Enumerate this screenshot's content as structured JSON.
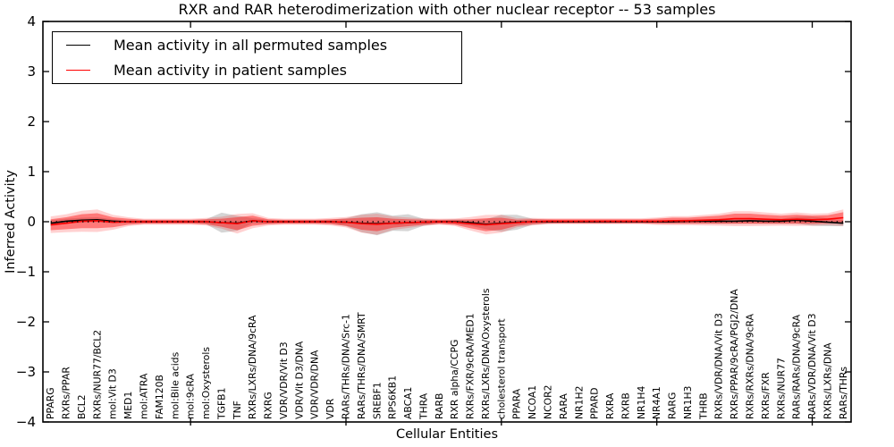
{
  "figure": {
    "title": "RXR and RAR heterodimerization with other nuclear receptor -- 53 samples",
    "xlabel": "Cellular Entities",
    "ylabel": "Inferred Activity"
  },
  "chart_data": {
    "type": "line",
    "title": "RXR and RAR heterodimerization with other nuclear receptor -- 53 samples",
    "xlabel": "Cellular Entities",
    "ylabel": "Inferred Activity",
    "ylim": [
      -4,
      4
    ],
    "yticks": [
      -4,
      -3,
      -2,
      -1,
      0,
      1,
      2,
      3,
      4
    ],
    "xticks": [
      10,
      20,
      30,
      40,
      50
    ],
    "grid": false,
    "legend_position": "upper left",
    "zero_line": {
      "y": 0,
      "style": "dotted",
      "color": "#000000"
    },
    "categories": [
      "PPARG",
      "RXRs/PPAR",
      "BCL2",
      "RXRs/NUR77/BCL2",
      "mol:Vit D3",
      "MED1",
      "mol:ATRA",
      "FAM120B",
      "mol:Bile acids",
      "mol:9cRA",
      "mol:Oxysterols",
      "TGFB1",
      "TNF",
      "RXRs/LXRs/DNA/9cRA",
      "RXRG",
      "VDR/VDR/Vit D3",
      "VDR/Vit D3/DNA",
      "VDR/VDR/DNA",
      "VDR",
      "RARs/THRs/DNA/Src-1",
      "RARs/THRs/DNA/SMRT",
      "SREBF1",
      "RPS6KB1",
      "ABCA1",
      "THRA",
      "RARB",
      "RXR alpha/CCPG",
      "RXRs/FXR/9cRA/MED1",
      "RXRs/LXRs/DNA/Oxysterols",
      "cholesterol transport",
      "PPARA",
      "NCOA1",
      "NCOR2",
      "RARA",
      "NR1H2",
      "PPARD",
      "RXRA",
      "RXRB",
      "NR1H4",
      "NR4A1",
      "RARG",
      "NR1H3",
      "THRB",
      "RXRs/VDR/DNA/Vit D3",
      "RXRs/PPAR/9cRA/PGJ2/DNA",
      "RXRs/RXRs/DNA/9cRA",
      "RXRs/FXR",
      "RXRs/NUR77",
      "RARs/RARs/DNA/9cRA",
      "RARs/VDR/DNA/Vit D3",
      "RXRs/LXRs/DNA",
      "RARs/THRs"
    ],
    "series": [
      {
        "name": "Mean activity in all permuted samples",
        "color": "#000000",
        "band_fill": "#909090",
        "band_opacity": 0.38,
        "mean": [
          -0.03,
          0.01,
          0.03,
          0.04,
          0.01,
          0.0,
          0.0,
          0.0,
          0.0,
          0.0,
          0.0,
          -0.02,
          -0.03,
          0.02,
          0.0,
          0.0,
          0.0,
          0.0,
          0.0,
          -0.01,
          -0.03,
          -0.04,
          -0.03,
          -0.02,
          -0.01,
          0.0,
          0.0,
          -0.02,
          -0.05,
          -0.03,
          -0.01,
          0.0,
          0.0,
          0.0,
          0.0,
          0.0,
          0.0,
          0.0,
          0.0,
          0.0,
          0.0,
          0.01,
          0.01,
          0.01,
          0.01,
          0.02,
          0.01,
          0.01,
          0.03,
          0.01,
          -0.01,
          -0.03
        ],
        "std": [
          0.06,
          0.05,
          0.05,
          0.05,
          0.04,
          0.03,
          0.03,
          0.03,
          0.03,
          0.03,
          0.05,
          0.2,
          0.15,
          0.05,
          0.04,
          0.03,
          0.03,
          0.03,
          0.04,
          0.08,
          0.18,
          0.23,
          0.15,
          0.17,
          0.07,
          0.04,
          0.05,
          0.06,
          0.1,
          0.17,
          0.15,
          0.06,
          0.04,
          0.03,
          0.03,
          0.03,
          0.03,
          0.03,
          0.03,
          0.03,
          0.03,
          0.04,
          0.04,
          0.05,
          0.05,
          0.06,
          0.05,
          0.05,
          0.07,
          0.09,
          0.08,
          0.06
        ]
      },
      {
        "name": "Mean activity in patient samples",
        "color": "#ff0000",
        "band_fill": "#ff0000",
        "band_opacity": 0.42,
        "outer_band_scale": 1.5,
        "outer_band_opacity": 0.18,
        "mean": [
          -0.06,
          -0.03,
          0.01,
          0.02,
          -0.01,
          0.0,
          0.0,
          0.0,
          0.0,
          0.0,
          0.0,
          -0.02,
          -0.04,
          0.02,
          0.0,
          0.0,
          0.0,
          0.0,
          0.0,
          -0.01,
          -0.04,
          -0.05,
          -0.03,
          -0.02,
          -0.01,
          0.0,
          -0.01,
          -0.04,
          -0.06,
          -0.04,
          -0.02,
          0.0,
          0.01,
          0.01,
          0.01,
          0.01,
          0.01,
          0.01,
          0.01,
          0.01,
          0.02,
          0.02,
          0.03,
          0.04,
          0.06,
          0.06,
          0.05,
          0.04,
          0.05,
          0.04,
          0.05,
          0.08
        ],
        "std": [
          0.11,
          0.12,
          0.14,
          0.15,
          0.1,
          0.06,
          0.04,
          0.04,
          0.04,
          0.04,
          0.05,
          0.08,
          0.13,
          0.1,
          0.05,
          0.04,
          0.04,
          0.04,
          0.05,
          0.07,
          0.12,
          0.14,
          0.09,
          0.07,
          0.05,
          0.04,
          0.05,
          0.09,
          0.13,
          0.12,
          0.06,
          0.05,
          0.04,
          0.04,
          0.04,
          0.04,
          0.04,
          0.04,
          0.04,
          0.05,
          0.06,
          0.06,
          0.07,
          0.08,
          0.1,
          0.1,
          0.09,
          0.08,
          0.09,
          0.08,
          0.08,
          0.11
        ]
      }
    ]
  }
}
